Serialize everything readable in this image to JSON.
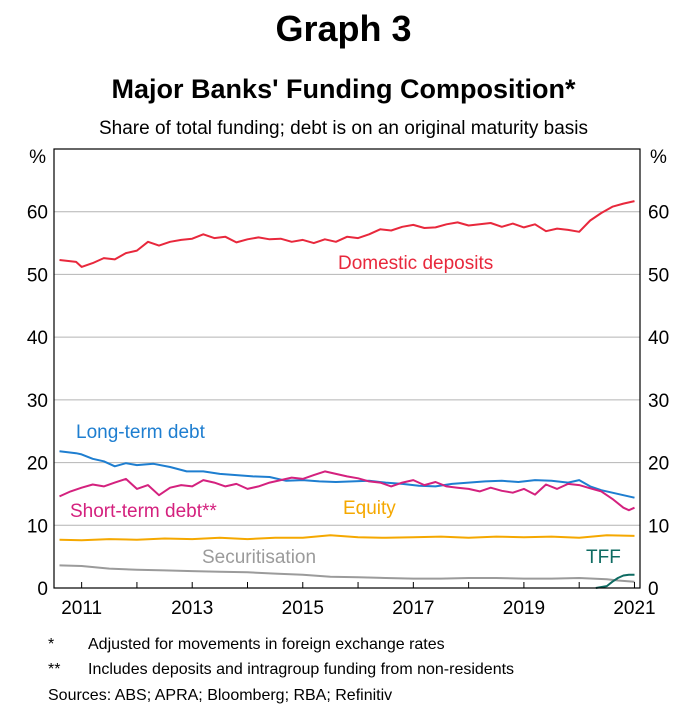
{
  "header": {
    "graph_number": "Graph 3",
    "title": "Major Banks' Funding Composition*",
    "subtitle": "Share of total funding; debt is on an original maturity basis"
  },
  "footnotes": [
    {
      "marker": "*",
      "text": "Adjusted for movements in foreign exchange rates"
    },
    {
      "marker": "**",
      "text": "Includes deposits and intragroup funding from non-residents"
    }
  ],
  "sources": "Sources: ABS; APRA; Bloomberg; RBA; Refinitiv",
  "chart_data": {
    "type": "line",
    "title": "Major Banks' Funding Composition*",
    "subtitle": "Share of total funding; debt is on an original maturity basis",
    "ylabel_left": "%",
    "ylabel_right": "%",
    "ylim": [
      0,
      70
    ],
    "xlim": [
      2010.5,
      2021.1
    ],
    "yticks": [
      0,
      10,
      20,
      30,
      40,
      50,
      60
    ],
    "xticks": [
      2011,
      2013,
      2015,
      2017,
      2019,
      2021
    ],
    "xtick_labels": [
      "2011",
      "2013",
      "2015",
      "2017",
      "2019",
      "2021"
    ],
    "grid": true,
    "series": [
      {
        "name": "Domestic deposits",
        "color": "#e8283c",
        "x": [
          2010.6,
          2010.9,
          2011.0,
          2011.2,
          2011.4,
          2011.6,
          2011.8,
          2012.0,
          2012.2,
          2012.4,
          2012.6,
          2012.8,
          2013.0,
          2013.2,
          2013.4,
          2013.6,
          2013.8,
          2014.0,
          2014.2,
          2014.4,
          2014.6,
          2014.8,
          2015.0,
          2015.2,
          2015.4,
          2015.6,
          2015.8,
          2016.0,
          2016.2,
          2016.4,
          2016.6,
          2016.8,
          2017.0,
          2017.2,
          2017.4,
          2017.6,
          2017.8,
          2018.0,
          2018.2,
          2018.4,
          2018.6,
          2018.8,
          2019.0,
          2019.2,
          2019.4,
          2019.6,
          2019.8,
          2020.0,
          2020.2,
          2020.4,
          2020.6,
          2020.8,
          2021.0
        ],
        "values": [
          52.3,
          52.0,
          51.2,
          51.8,
          52.6,
          52.4,
          53.4,
          53.8,
          55.2,
          54.6,
          55.2,
          55.5,
          55.7,
          56.4,
          55.8,
          56.0,
          55.1,
          55.6,
          55.9,
          55.6,
          55.7,
          55.2,
          55.5,
          55.0,
          55.6,
          55.2,
          56.0,
          55.8,
          56.4,
          57.2,
          57.0,
          57.6,
          57.9,
          57.4,
          57.5,
          58.0,
          58.3,
          57.8,
          58.0,
          58.2,
          57.6,
          58.1,
          57.5,
          58.0,
          56.9,
          57.3,
          57.1,
          56.8,
          58.6,
          59.8,
          60.8,
          61.3,
          61.7
        ]
      },
      {
        "name": "Long-term debt",
        "color": "#1e7ed0",
        "x": [
          2010.6,
          2010.9,
          2011.0,
          2011.2,
          2011.4,
          2011.6,
          2011.8,
          2012.0,
          2012.3,
          2012.6,
          2012.9,
          2013.2,
          2013.5,
          2013.8,
          2014.1,
          2014.4,
          2014.7,
          2015.0,
          2015.3,
          2015.6,
          2015.9,
          2016.2,
          2016.5,
          2016.8,
          2017.1,
          2017.4,
          2017.7,
          2018.0,
          2018.3,
          2018.6,
          2018.9,
          2019.2,
          2019.5,
          2019.8,
          2020.0,
          2020.2,
          2020.4,
          2020.6,
          2020.8,
          2021.0
        ],
        "values": [
          21.8,
          21.5,
          21.3,
          20.6,
          20.2,
          19.4,
          19.9,
          19.6,
          19.8,
          19.3,
          18.6,
          18.6,
          18.2,
          18.0,
          17.8,
          17.7,
          17.1,
          17.2,
          17.0,
          16.9,
          17.0,
          17.1,
          16.8,
          16.6,
          16.3,
          16.2,
          16.6,
          16.8,
          17.0,
          17.1,
          16.9,
          17.2,
          17.1,
          16.8,
          17.2,
          16.2,
          15.6,
          15.2,
          14.8,
          14.4
        ]
      },
      {
        "name": "Short-term debt**",
        "color": "#d4217e",
        "x": [
          2010.6,
          2010.8,
          2011.0,
          2011.2,
          2011.4,
          2011.6,
          2011.8,
          2012.0,
          2012.2,
          2012.4,
          2012.6,
          2012.8,
          2013.0,
          2013.2,
          2013.4,
          2013.6,
          2013.8,
          2014.0,
          2014.2,
          2014.4,
          2014.6,
          2014.8,
          2015.0,
          2015.2,
          2015.4,
          2015.6,
          2015.8,
          2016.0,
          2016.2,
          2016.4,
          2016.6,
          2016.8,
          2017.0,
          2017.2,
          2017.4,
          2017.6,
          2017.8,
          2018.0,
          2018.2,
          2018.4,
          2018.6,
          2018.8,
          2019.0,
          2019.2,
          2019.4,
          2019.6,
          2019.8,
          2020.0,
          2020.2,
          2020.4,
          2020.6,
          2020.8,
          2020.9,
          2021.0
        ],
        "values": [
          14.6,
          15.4,
          16.0,
          16.5,
          16.2,
          16.8,
          17.4,
          15.8,
          16.4,
          14.8,
          16.0,
          16.4,
          16.2,
          17.2,
          16.8,
          16.2,
          16.6,
          15.8,
          16.2,
          16.8,
          17.2,
          17.6,
          17.4,
          18.0,
          18.6,
          18.2,
          17.8,
          17.5,
          17.0,
          16.8,
          16.2,
          16.8,
          17.2,
          16.4,
          16.9,
          16.2,
          16.0,
          15.8,
          15.4,
          16.0,
          15.5,
          15.2,
          15.8,
          14.9,
          16.5,
          15.8,
          16.6,
          16.4,
          15.9,
          15.4,
          14.2,
          12.8,
          12.4,
          12.8
        ]
      },
      {
        "name": "Equity",
        "color": "#f5a800",
        "x": [
          2010.6,
          2011.0,
          2011.5,
          2012.0,
          2012.5,
          2013.0,
          2013.5,
          2014.0,
          2014.5,
          2015.0,
          2015.5,
          2016.0,
          2016.5,
          2017.0,
          2017.5,
          2018.0,
          2018.5,
          2019.0,
          2019.5,
          2020.0,
          2020.5,
          2021.0
        ],
        "values": [
          7.7,
          7.6,
          7.8,
          7.7,
          7.9,
          7.8,
          8.0,
          7.8,
          8.0,
          8.0,
          8.4,
          8.1,
          8.0,
          8.1,
          8.2,
          8.0,
          8.2,
          8.1,
          8.2,
          8.0,
          8.4,
          8.3
        ]
      },
      {
        "name": "Securitisation",
        "color": "#9b9b9b",
        "x": [
          2010.6,
          2011.0,
          2011.5,
          2012.0,
          2012.5,
          2013.0,
          2013.5,
          2014.0,
          2014.5,
          2015.0,
          2015.5,
          2016.0,
          2016.5,
          2017.0,
          2017.5,
          2018.0,
          2018.5,
          2019.0,
          2019.5,
          2020.0,
          2020.5,
          2020.7,
          2021.0
        ],
        "values": [
          3.6,
          3.5,
          3.1,
          2.9,
          2.8,
          2.7,
          2.6,
          2.5,
          2.3,
          2.1,
          1.8,
          1.7,
          1.6,
          1.5,
          1.5,
          1.6,
          1.6,
          1.5,
          1.5,
          1.6,
          1.4,
          1.2,
          1.0
        ]
      },
      {
        "name": "TFF",
        "color": "#0e6b62",
        "x": [
          2020.3,
          2020.5,
          2020.6,
          2020.7,
          2020.8,
          2020.9,
          2021.0
        ],
        "values": [
          0.0,
          0.3,
          1.0,
          1.6,
          2.0,
          2.1,
          2.1
        ]
      }
    ],
    "annotations": [
      {
        "text": "Domestic deposits",
        "series": "Domestic deposits"
      },
      {
        "text": "Long-term debt",
        "series": "Long-term debt"
      },
      {
        "text": "Short-term debt**",
        "series": "Short-term debt**"
      },
      {
        "text": "Equity",
        "series": "Equity"
      },
      {
        "text": "Securitisation",
        "series": "Securitisation"
      },
      {
        "text": "TFF",
        "series": "TFF"
      }
    ]
  }
}
